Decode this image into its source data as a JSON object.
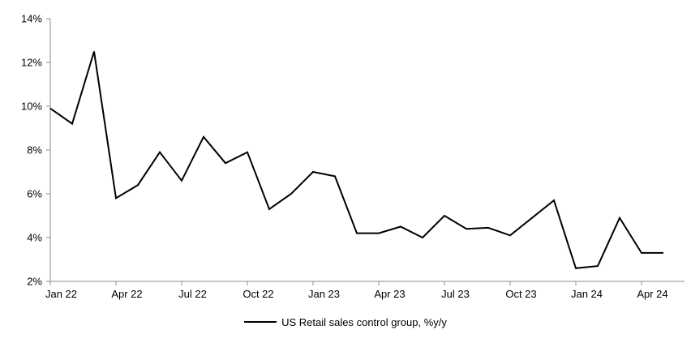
{
  "chart_data": {
    "type": "line",
    "title": "",
    "xlabel": "",
    "ylabel": "",
    "ylim": [
      2,
      14
    ],
    "grid": false,
    "legend_position": "bottom-center",
    "axis_color": "#8c8c8c",
    "label_color": "#000000",
    "line_color": "#000000",
    "y_ticks": [
      "2%",
      "4%",
      "6%",
      "8%",
      "10%",
      "12%",
      "14%"
    ],
    "x_tick_labels": [
      "Jan 22",
      "Apr 22",
      "Jul 22",
      "Oct 22",
      "Jan 23",
      "Apr 23",
      "Jul 23",
      "Oct 23",
      "Jan 24",
      "Apr 24"
    ],
    "x_tick_every": 3,
    "categories": [
      "Jan 22",
      "Feb 22",
      "Mar 22",
      "Apr 22",
      "May 22",
      "Jun 22",
      "Jul 22",
      "Aug 22",
      "Sep 22",
      "Oct 22",
      "Nov 22",
      "Dec 22",
      "Jan 23",
      "Feb 23",
      "Mar 23",
      "Apr 23",
      "May 23",
      "Jun 23",
      "Jul 23",
      "Aug 23",
      "Sep 23",
      "Oct 23",
      "Nov 23",
      "Dec 23",
      "Jan 24",
      "Feb 24",
      "Mar 24",
      "Apr 24",
      "May 24"
    ],
    "series": [
      {
        "name": "US Retail sales control group, %y/y",
        "values": [
          9.9,
          9.2,
          12.5,
          5.8,
          6.4,
          7.9,
          6.6,
          8.6,
          7.4,
          7.9,
          5.3,
          6.0,
          7.0,
          6.8,
          4.2,
          4.2,
          4.5,
          4.0,
          5.0,
          4.4,
          4.45,
          4.1,
          4.9,
          5.7,
          2.6,
          2.7,
          4.9,
          3.3,
          3.3
        ]
      }
    ]
  },
  "legend": {
    "label": "US Retail sales control group, %y/y"
  }
}
